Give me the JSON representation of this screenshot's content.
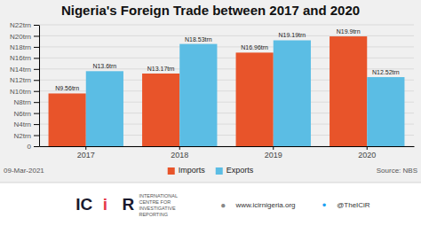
{
  "chart_data": {
    "type": "bar",
    "title": "Nigeria's Foreign Trade between 2017 and 2020",
    "categories": [
      "2017",
      "2018",
      "2019",
      "2020"
    ],
    "series": [
      {
        "name": "Imports",
        "color": "#E8542A",
        "values": [
          9.56,
          13.17,
          16.96,
          19.9
        ],
        "value_labels": [
          "N9.56trn",
          "N13.17trn",
          "N16.96trn",
          "N19.9trn"
        ]
      },
      {
        "name": "Exports",
        "color": "#5BBDE4",
        "values": [
          13.6,
          18.53,
          19.19,
          12.52
        ],
        "value_labels": [
          "N13.6trn",
          "N18.53trn",
          "N19.19trn",
          "N12.52trn"
        ]
      }
    ],
    "ylim": [
      0,
      22
    ],
    "yticks": [
      0,
      {
        "value": 2,
        "label": "N2trn"
      },
      {
        "value": 4,
        "label": "N4trn"
      },
      {
        "value": 6,
        "label": "N6trn"
      },
      {
        "value": 8,
        "label": "N8trn"
      },
      {
        "value": 10,
        "label": "N10trn"
      },
      {
        "value": 12,
        "label": "N12trn"
      },
      {
        "value": 14,
        "label": "N14trn"
      },
      {
        "value": 16,
        "label": "N16trn"
      },
      {
        "value": 18,
        "label": "N18trn"
      },
      {
        "value": 20,
        "label": "N20trn"
      },
      {
        "value": 22,
        "label": "N22trn"
      }
    ],
    "grid": true,
    "data_labels": true,
    "legend": "bottom",
    "annotations": [
      "09-Mar-2021",
      "Source: NBS",
      "IC",
      "i",
      "R",
      "INTERNATIONAL\nCENTRE FOR\nINVESTIGATIVE\nREPORTING",
      "●",
      "www.icirnigeria.org",
      "•",
      "@TheICiR"
    ]
  }
}
